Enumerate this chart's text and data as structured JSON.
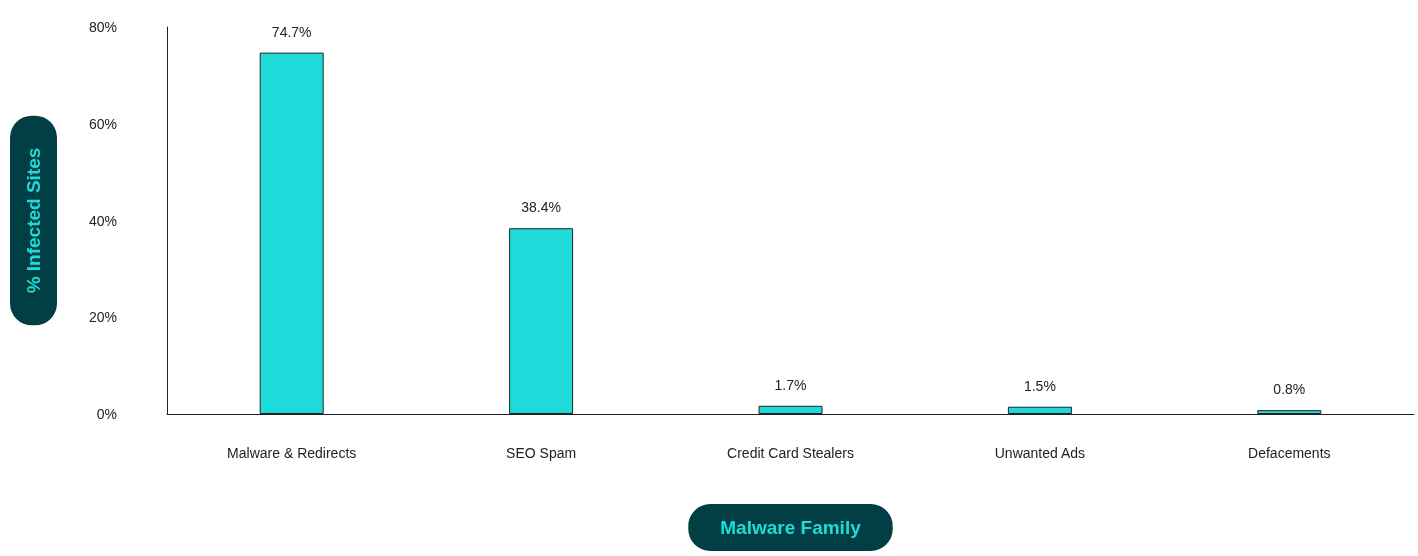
{
  "chart_data": {
    "type": "bar",
    "xlabel": "Malware Family",
    "ylabel": "% Infected Sites",
    "categories": [
      "Malware & Redirects",
      "SEO Spam",
      "Credit Card Stealers",
      "Unwanted Ads",
      "Defacements"
    ],
    "values": [
      74.7,
      38.4,
      1.7,
      1.5,
      0.8
    ],
    "value_labels": [
      "74.7%",
      "38.4%",
      "1.7%",
      "1.5%",
      "0.8%"
    ],
    "color": "#1ddbd8",
    "ylim": [
      0,
      80
    ],
    "yticks": [
      {
        "value": 0,
        "label": "0%"
      },
      {
        "value": 20,
        "label": "20%"
      },
      {
        "value": 40,
        "label": "40%"
      },
      {
        "value": 60,
        "label": "60%"
      },
      {
        "value": 80,
        "label": "80%"
      }
    ],
    "grid": false
  }
}
